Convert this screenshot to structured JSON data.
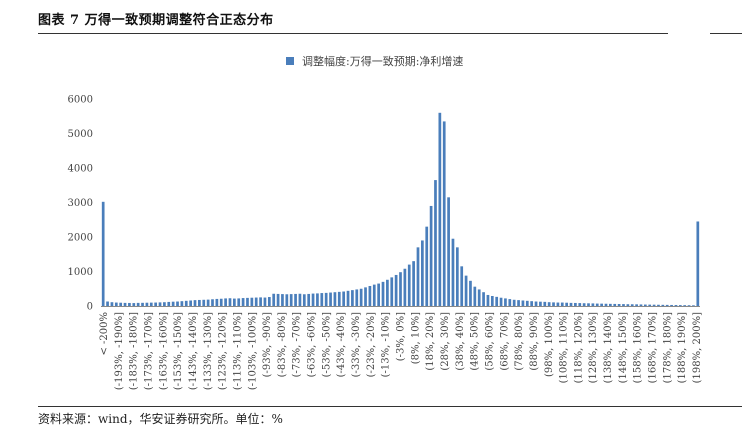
{
  "header": {
    "title": "图表 7  万得一致预期调整符合正态分布"
  },
  "footer": {
    "source": "资料来源：wind，华安证券研究所。单位：%"
  },
  "colors": {
    "bar": "#4a7ebb",
    "axis": "#888888",
    "rule": "#333333"
  },
  "chart_data": {
    "type": "bar",
    "title": "",
    "xlabel": "",
    "ylabel": "",
    "ylim": [
      0,
      6000
    ],
    "yticks": [
      0,
      1000,
      2000,
      3000,
      4000,
      5000,
      6000
    ],
    "legend": {
      "position": "top",
      "entries": [
        "调整幅度:万得一致预期:净利增速"
      ]
    },
    "grid": false,
    "series": [
      {
        "name": "调整幅度:万得一致预期:净利增速",
        "values": [
          3020,
          130,
          110,
          100,
          95,
          90,
          88,
          85,
          90,
          92,
          95,
          98,
          100,
          105,
          110,
          118,
          125,
          130,
          140,
          150,
          160,
          170,
          175,
          180,
          185,
          195,
          205,
          210,
          220,
          225,
          215,
          220,
          230,
          235,
          240,
          245,
          250,
          245,
          260,
          355,
          350,
          345,
          340,
          345,
          350,
          355,
          340,
          350,
          360,
          365,
          375,
          380,
          390,
          400,
          410,
          420,
          440,
          460,
          480,
          500,
          540,
          580,
          620,
          650,
          700,
          760,
          830,
          900,
          980,
          1080,
          1200,
          1300,
          1700,
          1900,
          2300,
          2900,
          3650,
          5600,
          5350,
          3150,
          1950,
          1700,
          1150,
          880,
          730,
          560,
          480,
          400,
          320,
          290,
          265,
          240,
          220,
          200,
          180,
          170,
          160,
          150,
          140,
          130,
          125,
          120,
          110,
          105,
          100,
          100,
          95,
          90,
          88,
          85,
          80,
          78,
          75,
          70,
          68,
          65,
          62,
          60,
          58,
          55,
          52,
          50,
          48,
          45,
          42,
          40,
          38,
          36,
          34,
          32,
          30,
          28,
          26,
          24,
          22,
          20,
          2450
        ]
      }
    ],
    "x_tick_labels": [
      "< -200%",
      "(-193%, -190%]",
      "(-183%, -180%]",
      "(-173%, -170%]",
      "(-163%, -160%]",
      "(-153%, -150%]",
      "(-143%, -140%]",
      "(-133%, -130%]",
      "(-123%, -120%]",
      "(-113%, -110%]",
      "(-103%, -100%]",
      "(-93%, -90%]",
      "(-83%, -80%]",
      "(-73%, -70%]",
      "(-63%, -60%]",
      "(-53%, -50%]",
      "(-43%, -40%]",
      "(-33%, -30%]",
      "(-23%, -20%]",
      "(-13%, -10%]",
      "(-3%, 0%]",
      "(8%, 10%]",
      "(18%, 20%]",
      "(28%, 30%]",
      "(38%, 40%]",
      "(48%, 50%]",
      "(58%, 60%]",
      "(68%, 70%]",
      "(78%, 80%]",
      "(88%, 90%]",
      "(98%, 100%]",
      "(108%, 110%]",
      "(118%, 120%]",
      "(128%, 130%]",
      "(138%, 140%]",
      "(148%, 150%]",
      "(158%, 160%]",
      "(168%, 170%]",
      "(178%, 180%]",
      "(188%, 190%]",
      "(198%, 200%]"
    ]
  }
}
